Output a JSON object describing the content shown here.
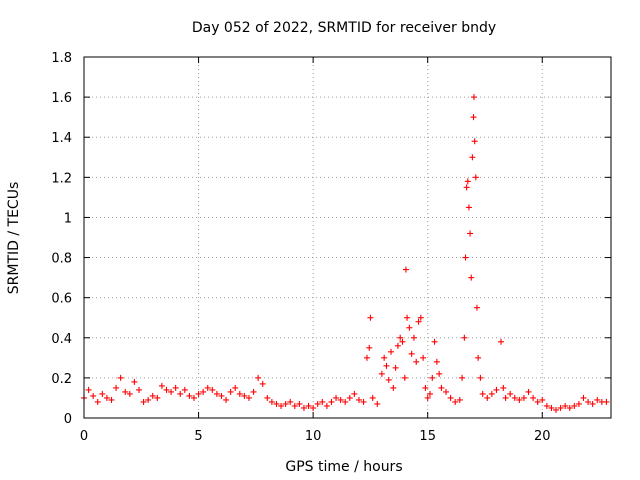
{
  "chart_data": {
    "type": "scatter",
    "title": "Day 052 of 2022, SRMTID for receiver bndy",
    "xlabel": "GPS time / hours",
    "ylabel": "SRMTID / TECUs",
    "xlim": [
      0,
      23
    ],
    "ylim": [
      0,
      1.8
    ],
    "xticks": [
      0,
      5,
      10,
      15,
      20
    ],
    "xtick_labels": [
      "0",
      "5",
      "10",
      "15",
      "20"
    ],
    "yticks": [
      0,
      0.2,
      0.4,
      0.6,
      0.8,
      1.0,
      1.2,
      1.4,
      1.6,
      1.8
    ],
    "ytick_labels": [
      "0",
      "0.2",
      "0.4",
      "0.6",
      "0.8",
      "1",
      "1.2",
      "1.4",
      "1.6",
      "1.8"
    ],
    "grid": true,
    "marker": "+",
    "series": [
      {
        "name": "SRMTID",
        "color": "#ff0000",
        "points": [
          [
            0.0,
            0.1
          ],
          [
            0.2,
            0.14
          ],
          [
            0.4,
            0.11
          ],
          [
            0.6,
            0.08
          ],
          [
            0.8,
            0.12
          ],
          [
            1.0,
            0.1
          ],
          [
            1.2,
            0.09
          ],
          [
            1.4,
            0.15
          ],
          [
            1.6,
            0.2
          ],
          [
            1.8,
            0.13
          ],
          [
            2.0,
            0.12
          ],
          [
            2.2,
            0.18
          ],
          [
            2.4,
            0.14
          ],
          [
            2.6,
            0.08
          ],
          [
            2.8,
            0.09
          ],
          [
            3.0,
            0.11
          ],
          [
            3.2,
            0.1
          ],
          [
            3.4,
            0.16
          ],
          [
            3.6,
            0.14
          ],
          [
            3.8,
            0.13
          ],
          [
            4.0,
            0.15
          ],
          [
            4.2,
            0.12
          ],
          [
            4.4,
            0.14
          ],
          [
            4.6,
            0.11
          ],
          [
            4.8,
            0.1
          ],
          [
            5.0,
            0.12
          ],
          [
            5.2,
            0.13
          ],
          [
            5.4,
            0.15
          ],
          [
            5.6,
            0.14
          ],
          [
            5.8,
            0.12
          ],
          [
            6.0,
            0.11
          ],
          [
            6.2,
            0.09
          ],
          [
            6.4,
            0.13
          ],
          [
            6.6,
            0.15
          ],
          [
            6.8,
            0.12
          ],
          [
            7.0,
            0.11
          ],
          [
            7.2,
            0.1
          ],
          [
            7.4,
            0.13
          ],
          [
            7.6,
            0.2
          ],
          [
            7.8,
            0.17
          ],
          [
            8.0,
            0.1
          ],
          [
            8.2,
            0.08
          ],
          [
            8.4,
            0.07
          ],
          [
            8.6,
            0.06
          ],
          [
            8.8,
            0.07
          ],
          [
            9.0,
            0.08
          ],
          [
            9.2,
            0.06
          ],
          [
            9.4,
            0.07
          ],
          [
            9.6,
            0.05
          ],
          [
            9.8,
            0.06
          ],
          [
            10.0,
            0.05
          ],
          [
            10.2,
            0.07
          ],
          [
            10.4,
            0.08
          ],
          [
            10.6,
            0.06
          ],
          [
            10.8,
            0.08
          ],
          [
            11.0,
            0.1
          ],
          [
            11.2,
            0.09
          ],
          [
            11.4,
            0.08
          ],
          [
            11.6,
            0.1
          ],
          [
            11.8,
            0.12
          ],
          [
            12.0,
            0.09
          ],
          [
            12.2,
            0.08
          ],
          [
            12.35,
            0.3
          ],
          [
            12.45,
            0.35
          ],
          [
            12.5,
            0.5
          ],
          [
            12.6,
            0.1
          ],
          [
            12.8,
            0.07
          ],
          [
            13.0,
            0.22
          ],
          [
            13.1,
            0.3
          ],
          [
            13.2,
            0.26
          ],
          [
            13.3,
            0.19
          ],
          [
            13.4,
            0.33
          ],
          [
            13.5,
            0.15
          ],
          [
            13.6,
            0.25
          ],
          [
            13.7,
            0.36
          ],
          [
            13.8,
            0.4
          ],
          [
            13.9,
            0.38
          ],
          [
            14.0,
            0.2
          ],
          [
            14.05,
            0.74
          ],
          [
            14.1,
            0.5
          ],
          [
            14.2,
            0.45
          ],
          [
            14.3,
            0.32
          ],
          [
            14.4,
            0.4
          ],
          [
            14.5,
            0.28
          ],
          [
            14.6,
            0.48
          ],
          [
            14.7,
            0.5
          ],
          [
            14.8,
            0.3
          ],
          [
            14.9,
            0.15
          ],
          [
            15.0,
            0.1
          ],
          [
            15.1,
            0.12
          ],
          [
            15.2,
            0.2
          ],
          [
            15.3,
            0.38
          ],
          [
            15.4,
            0.28
          ],
          [
            15.5,
            0.22
          ],
          [
            15.6,
            0.15
          ],
          [
            15.8,
            0.13
          ],
          [
            16.0,
            0.1
          ],
          [
            16.2,
            0.08
          ],
          [
            16.4,
            0.09
          ],
          [
            16.5,
            0.2
          ],
          [
            16.6,
            0.4
          ],
          [
            16.65,
            0.8
          ],
          [
            16.7,
            1.15
          ],
          [
            16.75,
            1.18
          ],
          [
            16.8,
            1.05
          ],
          [
            16.85,
            0.92
          ],
          [
            16.9,
            0.7
          ],
          [
            16.95,
            1.3
          ],
          [
            17.0,
            1.5
          ],
          [
            17.02,
            1.6
          ],
          [
            17.05,
            1.38
          ],
          [
            17.1,
            1.2
          ],
          [
            17.15,
            0.55
          ],
          [
            17.2,
            0.3
          ],
          [
            17.3,
            0.2
          ],
          [
            17.4,
            0.12
          ],
          [
            17.6,
            0.1
          ],
          [
            17.8,
            0.12
          ],
          [
            18.0,
            0.14
          ],
          [
            18.2,
            0.38
          ],
          [
            18.3,
            0.15
          ],
          [
            18.4,
            0.1
          ],
          [
            18.6,
            0.12
          ],
          [
            18.8,
            0.1
          ],
          [
            19.0,
            0.09
          ],
          [
            19.2,
            0.1
          ],
          [
            19.4,
            0.13
          ],
          [
            19.6,
            0.1
          ],
          [
            19.8,
            0.08
          ],
          [
            20.0,
            0.09
          ],
          [
            20.2,
            0.06
          ],
          [
            20.4,
            0.05
          ],
          [
            20.6,
            0.04
          ],
          [
            20.8,
            0.05
          ],
          [
            21.0,
            0.06
          ],
          [
            21.2,
            0.05
          ],
          [
            21.4,
            0.06
          ],
          [
            21.6,
            0.07
          ],
          [
            21.8,
            0.1
          ],
          [
            22.0,
            0.08
          ],
          [
            22.2,
            0.07
          ],
          [
            22.4,
            0.09
          ],
          [
            22.6,
            0.08
          ],
          [
            22.8,
            0.08
          ]
        ]
      }
    ]
  }
}
